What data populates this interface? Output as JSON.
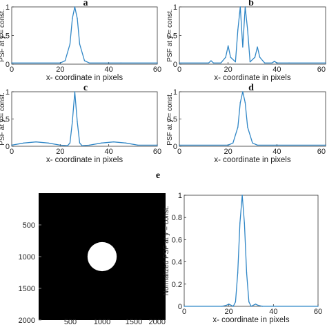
{
  "panel_labels": [
    "a",
    "b",
    "c",
    "d",
    "e"
  ],
  "colors": {
    "line": "#2f86c6",
    "axis": "#333333",
    "image_bg": "#000000",
    "image_fg": "#ffffff"
  },
  "chart_data": [
    {
      "id": "a",
      "type": "line",
      "title": "a",
      "xlabel": "x- coordinate in pixels",
      "ylabel": "PSF at y = const.",
      "xlim": [
        0,
        60
      ],
      "ylim": [
        0,
        1
      ],
      "xticks": [
        "0",
        "20",
        "40",
        "60"
      ],
      "yticks": [
        "0",
        "0.5",
        "1"
      ],
      "x": [
        0,
        20,
        22,
        24,
        25,
        26,
        27,
        28,
        30,
        32,
        45,
        60
      ],
      "series": [
        {
          "values": [
            0.02,
            0.02,
            0.06,
            0.35,
            0.8,
            1.0,
            0.8,
            0.35,
            0.06,
            0.02,
            0.02,
            0.02
          ]
        }
      ]
    },
    {
      "id": "b",
      "type": "line",
      "title": "b",
      "xlabel": "x- coordinate in pixels",
      "ylabel": "PSF at y = const.",
      "xlim": [
        0,
        60
      ],
      "ylim": [
        0,
        1
      ],
      "xticks": [
        "0",
        "20",
        "40",
        "60"
      ],
      "yticks": [
        "0",
        "0.5",
        "1"
      ],
      "x": [
        0,
        12,
        13,
        14,
        17,
        19,
        20,
        21,
        23,
        24,
        25,
        26,
        27,
        28,
        29,
        31,
        32,
        33,
        35,
        38,
        39,
        40,
        45,
        60
      ],
      "series": [
        {
          "values": [
            0.02,
            0.02,
            0.06,
            0.02,
            0.02,
            0.12,
            0.32,
            0.12,
            0.04,
            0.6,
            1.0,
            0.3,
            1.0,
            0.6,
            0.04,
            0.12,
            0.3,
            0.12,
            0.02,
            0.02,
            0.05,
            0.02,
            0.02,
            0.02
          ]
        }
      ]
    },
    {
      "id": "c",
      "type": "line",
      "title": "c",
      "xlabel": "x- coordinate in pixels",
      "ylabel": "PSF at y = const.",
      "xlim": [
        0,
        60
      ],
      "ylim": [
        0,
        1
      ],
      "xticks": [
        "0",
        "20",
        "40",
        "60"
      ],
      "yticks": [
        "0",
        "0.5",
        "1"
      ],
      "x": [
        0,
        5,
        10,
        15,
        20,
        23,
        24,
        25,
        26,
        27,
        28,
        29,
        32,
        37,
        42,
        47,
        52,
        60
      ],
      "series": [
        {
          "values": [
            0.02,
            0.06,
            0.08,
            0.06,
            0.02,
            0.01,
            0.06,
            0.45,
            1.0,
            0.45,
            0.06,
            0.01,
            0.02,
            0.06,
            0.08,
            0.06,
            0.02,
            0.02
          ]
        }
      ]
    },
    {
      "id": "d",
      "type": "line",
      "title": "d",
      "xlabel": "x- coordinate in pixels",
      "ylabel": "PSF at y = const.",
      "xlim": [
        0,
        60
      ],
      "ylim": [
        0,
        1
      ],
      "xticks": [
        "0",
        "20",
        "40",
        "60"
      ],
      "yticks": [
        "0",
        "0.5",
        "1"
      ],
      "x": [
        0,
        20,
        22,
        24,
        25,
        26,
        27,
        28,
        30,
        32,
        40,
        60
      ],
      "series": [
        {
          "values": [
            0.02,
            0.02,
            0.06,
            0.35,
            0.8,
            1.0,
            0.8,
            0.35,
            0.06,
            0.02,
            0.02,
            0.02
          ]
        }
      ]
    },
    {
      "id": "e-image",
      "type": "heatmap",
      "xlim": [
        0,
        2000
      ],
      "ylim": [
        0,
        2000
      ],
      "xticks": [
        "500",
        "1000",
        "1500",
        "2000"
      ],
      "yticks": [
        "500",
        "1000",
        "1500",
        "2000"
      ],
      "disk": {
        "cx": 1000,
        "cy": 1000,
        "r": 230
      }
    },
    {
      "id": "e-profile",
      "type": "line",
      "title": "e",
      "xlabel": "x- coordinate in pixels",
      "ylabel": "Normalized PSF at y = const.",
      "xlim": [
        0,
        60
      ],
      "ylim": [
        0,
        1
      ],
      "xticks": [
        "0",
        "20",
        "40",
        "60"
      ],
      "yticks": [
        "0",
        "0.2",
        "0.4",
        "0.6",
        "0.8",
        "1"
      ],
      "x": [
        0,
        17,
        19,
        20,
        21,
        22,
        23,
        24,
        25,
        26,
        27,
        28,
        29,
        30,
        31,
        32,
        33,
        35,
        60
      ],
      "series": [
        {
          "values": [
            0.0,
            0.0,
            0.01,
            0.02,
            0.01,
            0.0,
            0.04,
            0.3,
            0.75,
            1.0,
            0.75,
            0.3,
            0.04,
            0.0,
            0.01,
            0.02,
            0.01,
            0.0,
            0.0
          ]
        }
      ]
    }
  ]
}
